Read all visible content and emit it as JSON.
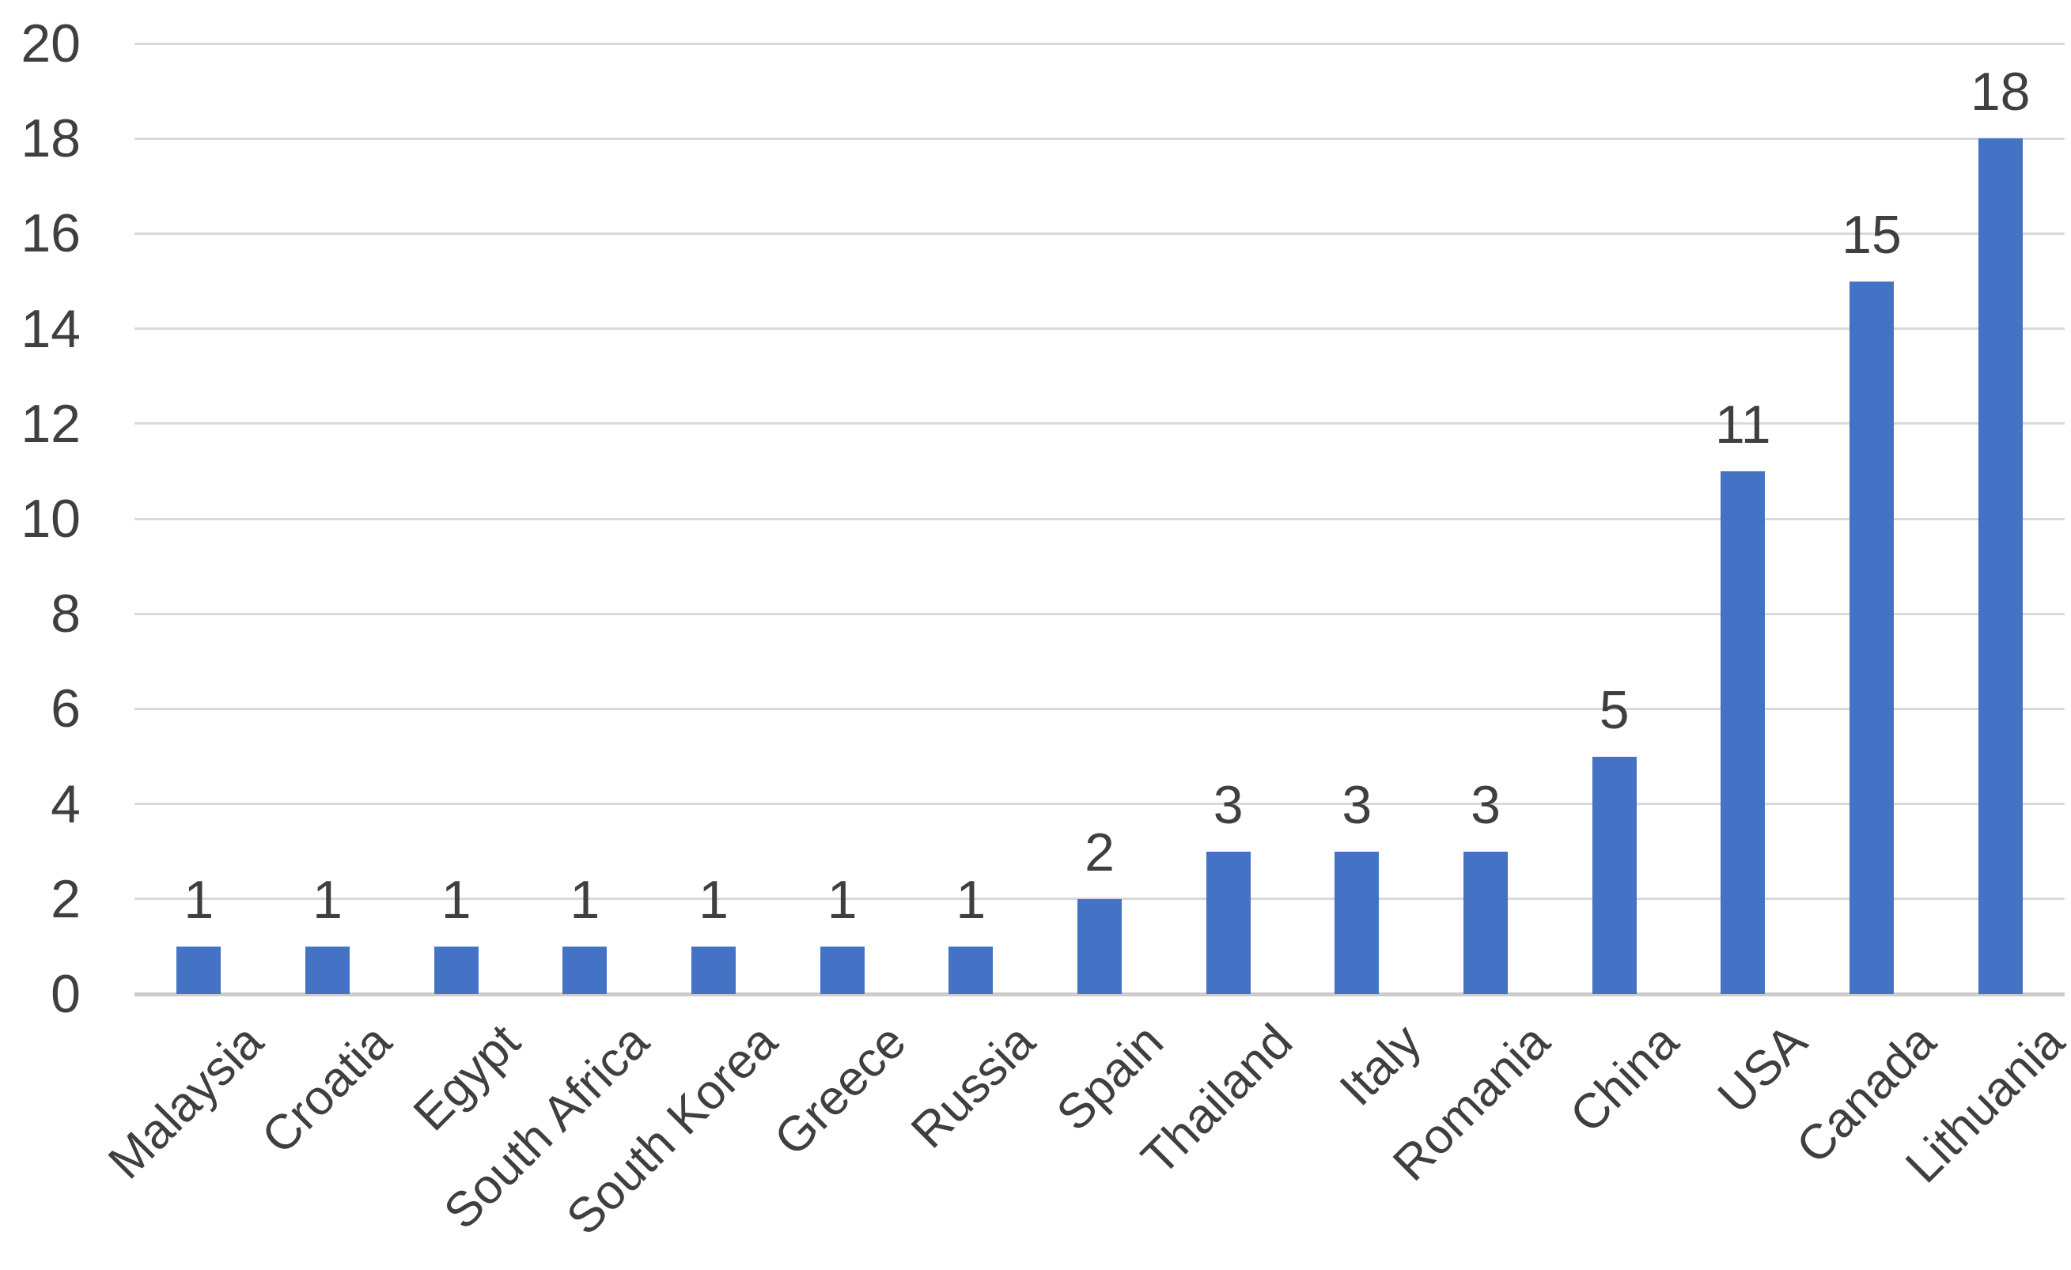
{
  "chart_data": {
    "type": "bar",
    "title": "",
    "xlabel": "",
    "ylabel": "",
    "categories": [
      "Malaysia",
      "Croatia",
      "Egypt",
      "South Africa",
      "South Korea",
      "Greece",
      "Russia",
      "Spain",
      "Thailand",
      "Italy",
      "Romania",
      "China",
      "USA",
      "Canada",
      "Lithuania"
    ],
    "values": [
      1,
      1,
      1,
      1,
      1,
      1,
      1,
      2,
      3,
      3,
      3,
      5,
      11,
      15,
      18
    ],
    "data_labels": [
      "1",
      "1",
      "1",
      "1",
      "1",
      "1",
      "1",
      "2",
      "3",
      "3",
      "3",
      "5",
      "11",
      "15",
      "18"
    ],
    "ylim": [
      0,
      20
    ],
    "yticks": [
      0,
      2,
      4,
      6,
      8,
      10,
      12,
      14,
      16,
      18,
      20
    ],
    "grid": true,
    "legend_position": "none",
    "category_label_rotation_deg": 45,
    "colors": {
      "bar": "#4472C4",
      "gridline": "#D9D9D9",
      "axis_line": "#CCCCCC",
      "tick_label": "#3F3F3F",
      "category_label": "#3F3F3F",
      "data_label": "#3F3F3F"
    }
  }
}
